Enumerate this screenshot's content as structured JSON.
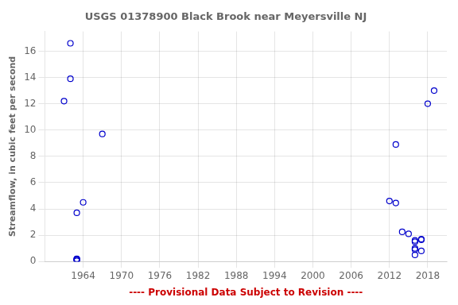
{
  "chart_data": {
    "type": "scatter",
    "title": "USGS 01378900 Black Brook near Meyersville NJ",
    "ylabel": "Streamflow, in cubic feet per second",
    "annotations": [
      {
        "text": "---- Provisional Data Subject to Revision ----",
        "color": "#cc0000"
      }
    ],
    "x": [
      1961,
      1962,
      1962,
      1963,
      1963,
      1963,
      1963,
      1963,
      1963,
      1964,
      1967,
      2012,
      2013,
      2013,
      2014,
      2015,
      2016,
      2016,
      2016,
      2016,
      2016,
      2017,
      2017,
      2017,
      2018,
      2019
    ],
    "values": [
      12.2,
      13.9,
      16.6,
      3.7,
      0.05,
      0.15,
      0.2,
      0.18,
      0.12,
      4.5,
      9.7,
      4.6,
      4.45,
      8.9,
      2.25,
      2.1,
      1.5,
      1.6,
      1.0,
      0.9,
      0.5,
      1.7,
      1.65,
      0.8,
      12.0,
      13.0
    ],
    "color": "#0000cc",
    "marker": "circle",
    "xlim": [
      1958,
      2021
    ],
    "ylim": [
      0,
      17.5
    ],
    "xticks": [
      1964,
      1970,
      1976,
      1982,
      1988,
      1994,
      2000,
      2006,
      2012,
      2018
    ],
    "yticks": [
      0,
      2,
      4,
      6,
      8,
      10,
      12,
      14,
      16
    ],
    "grid": true
  }
}
